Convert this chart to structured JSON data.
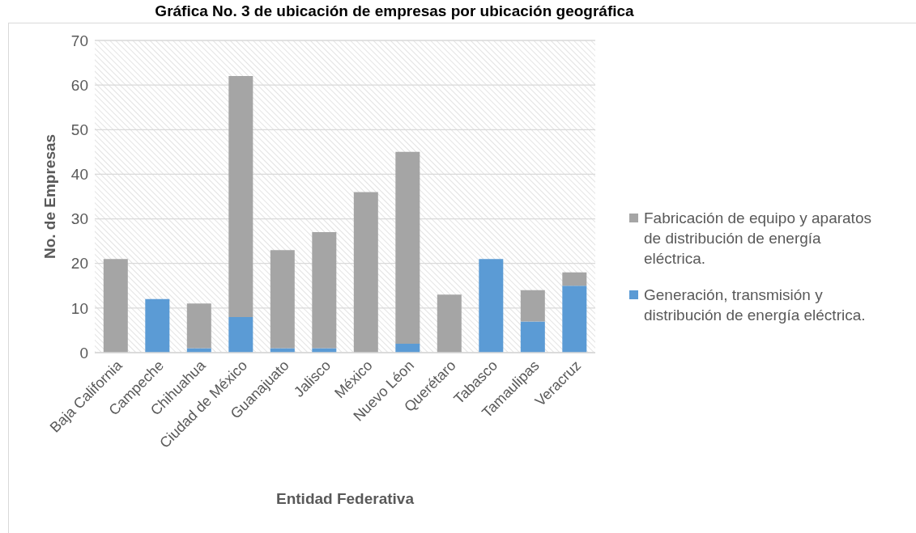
{
  "chart_data": {
    "type": "bar",
    "title": "Gráfica No. 3 de ubicación de empresas por ubicación geográfica",
    "xlabel": "Entidad Federativa",
    "ylabel": "No. de Empresas",
    "categories": [
      "Baja California",
      "Campeche",
      "Chihuahua",
      "Ciudad de México",
      "Guanajuato",
      "Jalisco",
      "México",
      "Nuevo Léon",
      "Querétaro",
      "Tabasco",
      "Tamaulipas",
      "Veracruz"
    ],
    "series": [
      {
        "name": "Generación, transmisión y distribución de energía eléctrica.",
        "color": "#5b9bd5",
        "values": [
          0,
          12,
          1,
          8,
          1,
          1,
          0,
          2,
          0,
          21,
          7,
          15
        ]
      },
      {
        "name": "Fabricación de equipo y aparatos de distribución de energía eléctrica.",
        "color": "#a5a5a5",
        "values": [
          21,
          0,
          10,
          54,
          22,
          26,
          36,
          43,
          13,
          0,
          7,
          3
        ]
      }
    ],
    "stacked": true,
    "ylim": [
      0,
      70
    ],
    "yticks": [
      0,
      10,
      20,
      30,
      40,
      50,
      60,
      70
    ],
    "grid": "y",
    "legend": "right"
  }
}
